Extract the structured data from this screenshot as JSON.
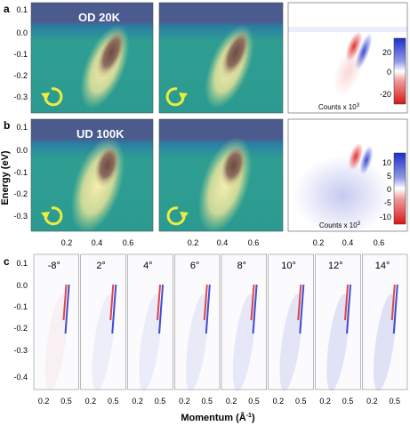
{
  "panels": {
    "a": {
      "letter": "a",
      "map_label": "OD 20K",
      "y_ticks": [
        "0.1",
        "0.0",
        "-0.1",
        "-0.2",
        "-0.3"
      ],
      "colorbar_ticks": [
        "20",
        "0",
        "-20"
      ],
      "counts_label": "Counts x 10",
      "counts_exp": "3"
    },
    "b": {
      "letter": "b",
      "map_label": "UD 100K",
      "y_ticks": [
        "0.1",
        "0.0",
        "-0.1",
        "-0.2",
        "-0.3"
      ],
      "colorbar_ticks": [
        "10",
        "5",
        "0",
        "-5",
        "-10"
      ],
      "counts_label": "Counts x 10",
      "counts_exp": "3",
      "x_ticks": [
        "0.2",
        "0.4",
        "0.6"
      ]
    },
    "c": {
      "letter": "c",
      "y_ticks": [
        "0.1",
        "0.0",
        "-0.1",
        "-0.2",
        "-0.3",
        "-0.4"
      ],
      "angles": [
        "-8°",
        "2°",
        "4°",
        "6°",
        "8°",
        "10°",
        "12°",
        "14°"
      ],
      "x_ticks": [
        "0.2",
        "0.5"
      ]
    }
  },
  "axes": {
    "energy_label": "Energy (eV)",
    "momentum_label": "Momentum (Å",
    "momentum_exp": "-1",
    "momentum_close": ")"
  },
  "colors": {
    "map_background": "#2e9e94",
    "map_top": "#4a5a8c",
    "intensity_glow": "#f1e7a4",
    "intensity_peak": "#7a5648",
    "diff_red": "#e02828",
    "diff_blue": "#2c3ed0",
    "arrow_color": "#eded40"
  }
}
